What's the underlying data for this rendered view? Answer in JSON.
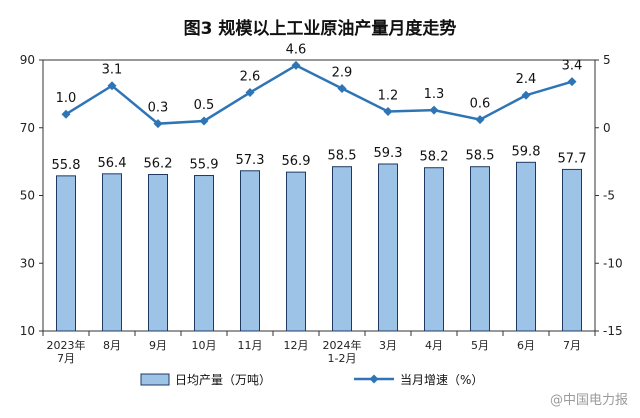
{
  "chart_data": {
    "type": "bar+line",
    "title": "图3  规模以上工业原油产量月度走势",
    "categories": [
      [
        "2023年",
        "7月"
      ],
      [
        "8月"
      ],
      [
        "9月"
      ],
      [
        "10月"
      ],
      [
        "11月"
      ],
      [
        "12月"
      ],
      [
        "2024年",
        "1-2月"
      ],
      [
        "3月"
      ],
      [
        "4月"
      ],
      [
        "5月"
      ],
      [
        "6月"
      ],
      [
        "7月"
      ]
    ],
    "series": [
      {
        "name": "日均产量（万吨）",
        "type": "bar",
        "axis": "left",
        "values": [
          55.8,
          56.4,
          56.2,
          55.9,
          57.3,
          56.9,
          58.5,
          59.3,
          58.2,
          58.5,
          59.8,
          57.7
        ],
        "labels": [
          "55.8",
          "56.4",
          "56.2",
          "55.9",
          "57.3",
          "56.9",
          "58.5",
          "59.3",
          "58.2",
          "58.5",
          "59.8",
          "57.7"
        ],
        "color": "#9DC3E6",
        "border": "#1F3864"
      },
      {
        "name": "当月增速（%）",
        "type": "line",
        "axis": "right",
        "values": [
          1.0,
          3.1,
          0.3,
          0.5,
          2.6,
          4.6,
          2.9,
          1.2,
          1.3,
          0.6,
          2.4,
          3.4
        ],
        "labels": [
          "1.0",
          "3.1",
          "0.3",
          "0.5",
          "2.6",
          "4.6",
          "2.9",
          "1.2",
          "1.3",
          "0.6",
          "2.4",
          "3.4"
        ],
        "color": "#2E75B6"
      }
    ],
    "left_axis": {
      "ylim": [
        10,
        90
      ],
      "ticks": [
        "10",
        "30",
        "50",
        "70",
        "90"
      ]
    },
    "right_axis": {
      "ylim": [
        -15,
        5
      ],
      "ticks": [
        "-15",
        "-10",
        "-5",
        "0",
        "5"
      ]
    },
    "grid": false,
    "legend_position": "bottom"
  },
  "watermark": "@中国电力报"
}
